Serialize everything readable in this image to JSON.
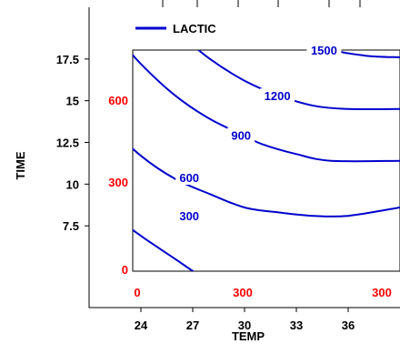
{
  "chart_data": {
    "type": "contour",
    "title": "",
    "legend": {
      "position": "top-left",
      "entries": [
        {
          "name": "LACTIC",
          "color": "#0000cc"
        }
      ]
    },
    "xlabel": "TEMP",
    "ylabel": "TIME",
    "x_ticks": [
      24,
      27,
      30,
      33,
      36
    ],
    "y_ticks": [
      7.5,
      10,
      12.5,
      15,
      17.5
    ],
    "xlim": [
      21,
      39
    ],
    "ylim": [
      2.6,
      20.6
    ],
    "inner_panel": {
      "x_labels": [
        "0",
        "300",
        "300"
      ],
      "y_labels": [
        "0",
        "300",
        "600"
      ],
      "color": "#ff0000"
    },
    "contours": [
      {
        "level": 300,
        "label": "300",
        "points": [
          [
            21,
            9.6
          ],
          [
            22.2,
            8.3
          ],
          [
            24,
            6.9
          ],
          [
            26,
            5.5
          ],
          [
            28.1,
            4.0
          ]
        ]
      },
      {
        "level": 600,
        "label": "600",
        "points": [
          [
            21,
            15.2
          ],
          [
            22.2,
            13.5
          ],
          [
            24,
            11.7
          ],
          [
            26,
            10.3
          ],
          [
            28,
            9.4
          ],
          [
            30,
            8.6
          ],
          [
            32,
            8.3
          ],
          [
            34,
            8.1
          ],
          [
            36,
            8.1
          ],
          [
            39,
            8.6
          ]
        ]
      },
      {
        "level": 900,
        "label": "900",
        "points": [
          [
            22.4,
            19.1
          ],
          [
            24,
            17.2
          ],
          [
            26,
            15.3
          ],
          [
            28,
            13.9
          ],
          [
            30,
            12.9
          ],
          [
            31,
            12.4
          ],
          [
            33,
            11.8
          ],
          [
            35,
            11.4
          ],
          [
            39,
            11.4
          ]
        ]
      },
      {
        "level": 1200,
        "label": "1200",
        "points": [
          [
            26.1,
            19.1
          ],
          [
            28,
            17.5
          ],
          [
            30,
            16.2
          ],
          [
            32,
            15.3
          ],
          [
            34,
            14.7
          ],
          [
            36,
            14.5
          ],
          [
            39,
            14.5
          ]
        ]
      },
      {
        "level": 1500,
        "label": "1500",
        "points": [
          [
            33.5,
            19.1
          ],
          [
            35,
            18.1
          ],
          [
            37,
            17.7
          ],
          [
            39,
            17.6
          ]
        ]
      }
    ],
    "contour_labels": [
      {
        "text": "300",
        "x": 26.8,
        "y": 8.1
      },
      {
        "text": "600",
        "x": 26.8,
        "y": 10.4
      },
      {
        "text": "900",
        "x": 29.8,
        "y": 12.95
      },
      {
        "text": "1200",
        "x": 31.9,
        "y": 15.3
      },
      {
        "text": "1500",
        "x": 34.6,
        "y": 18.05
      }
    ],
    "grid": false,
    "colors": {
      "contour": "#0000cc",
      "inner_labels": "#ff0000",
      "axes": "#000000"
    }
  }
}
